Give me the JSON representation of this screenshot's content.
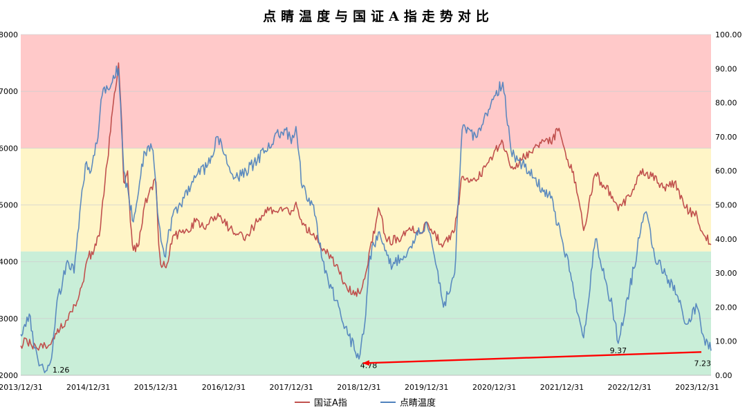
{
  "chart_data": {
    "type": "line",
    "title": "点睛温度与国证A指走势对比",
    "x_ticks": [
      "2013/12/31",
      "2014/12/31",
      "2015/12/31",
      "2016/12/31",
      "2017/12/31",
      "2018/12/31",
      "2019/12/31",
      "2020/12/31",
      "2021/12/31",
      "2022/12/31",
      "2023/12/31"
    ],
    "x_range": [
      "2013/12/31",
      "2024/03/15"
    ],
    "y_left": {
      "ticks": [
        "8000",
        "7000",
        "6000",
        "5000",
        "4000",
        "3000",
        "2000"
      ],
      "range": [
        2000,
        8000
      ]
    },
    "y_right": {
      "ticks": [
        "100.00",
        "90.00",
        "80.00",
        "70.00",
        "60.00",
        "50.00",
        "40.00",
        "30.00",
        "20.00",
        "10.00",
        "0.00"
      ],
      "range": [
        0,
        100
      ]
    },
    "bands": [
      {
        "axis": "left",
        "from": 6000,
        "to": 8000,
        "color": "#ffc9c9"
      },
      {
        "axis": "left",
        "from": 4180,
        "to": 6000,
        "color": "#fff5c7"
      },
      {
        "axis": "left",
        "from": 2000,
        "to": 4180,
        "color": "#c9eed8"
      }
    ],
    "legend_position": "bottom",
    "grid": true,
    "series": [
      {
        "name": "国证A指",
        "axis": "left",
        "color": "#c0504d",
        "points": [
          [
            "2013/12/31",
            2520
          ],
          [
            "2014/01/31",
            2640
          ],
          [
            "2014/02/28",
            2520
          ],
          [
            "2014/03/31",
            2470
          ],
          [
            "2014/04/30",
            2480
          ],
          [
            "2014/05/31",
            2530
          ],
          [
            "2014/06/30",
            2640
          ],
          [
            "2014/07/31",
            2810
          ],
          [
            "2014/08/31",
            2960
          ],
          [
            "2014/09/30",
            3120
          ],
          [
            "2014/10/31",
            3300
          ],
          [
            "2014/11/30",
            3620
          ],
          [
            "2014/12/31",
            4080
          ],
          [
            "2015/01/31",
            4200
          ],
          [
            "2015/02/28",
            4450
          ],
          [
            "2015/03/31",
            5400
          ],
          [
            "2015/04/30",
            6300
          ],
          [
            "2015/05/15",
            6800
          ],
          [
            "2015/06/12",
            7500
          ],
          [
            "2015/06/30",
            6400
          ],
          [
            "2015/07/10",
            5400
          ],
          [
            "2015/07/31",
            5600
          ],
          [
            "2015/08/15",
            4700
          ],
          [
            "2015/08/31",
            4200
          ],
          [
            "2015/09/30",
            4300
          ],
          [
            "2015/10/31",
            5000
          ],
          [
            "2015/11/30",
            5300
          ],
          [
            "2015/12/31",
            5400
          ],
          [
            "2016/01/15",
            4300
          ],
          [
            "2016/01/31",
            3900
          ],
          [
            "2016/02/29",
            3960
          ],
          [
            "2016/03/31",
            4450
          ],
          [
            "2016/05/31",
            4500
          ],
          [
            "2016/07/31",
            4700
          ],
          [
            "2016/09/30",
            4650
          ],
          [
            "2016/11/30",
            4850
          ],
          [
            "2016/12/31",
            4700
          ],
          [
            "2017/02/28",
            4500
          ],
          [
            "2017/04/30",
            4450
          ],
          [
            "2017/06/30",
            4700
          ],
          [
            "2017/08/31",
            4900
          ],
          [
            "2017/10/31",
            4950
          ],
          [
            "2017/12/31",
            4900
          ],
          [
            "2018/01/25",
            5050
          ],
          [
            "2018/02/28",
            4650
          ],
          [
            "2018/04/30",
            4500
          ],
          [
            "2018/06/30",
            4200
          ],
          [
            "2018/08/31",
            3950
          ],
          [
            "2018/10/31",
            3500
          ],
          [
            "2018/12/31",
            3450
          ],
          [
            "2019/01/31",
            3700
          ],
          [
            "2019/03/31",
            4650
          ],
          [
            "2019/04/15",
            4950
          ],
          [
            "2019/05/31",
            4350
          ],
          [
            "2019/07/31",
            4400
          ],
          [
            "2019/09/30",
            4600
          ],
          [
            "2019/11/30",
            4500
          ],
          [
            "2019/12/31",
            4700
          ],
          [
            "2020/01/31",
            4500
          ],
          [
            "2020/03/31",
            4300
          ],
          [
            "2020/05/31",
            4550
          ],
          [
            "2020/07/10",
            5500
          ],
          [
            "2020/09/30",
            5450
          ],
          [
            "2020/11/30",
            5750
          ],
          [
            "2020/12/31",
            5950
          ],
          [
            "2021/02/15",
            6100
          ],
          [
            "2021/03/31",
            5650
          ],
          [
            "2021/05/31",
            5800
          ],
          [
            "2021/07/31",
            6000
          ],
          [
            "2021/09/15",
            6150
          ],
          [
            "2021/10/31",
            6100
          ],
          [
            "2021/12/15",
            6350
          ],
          [
            "2021/12/31",
            6150
          ],
          [
            "2022/01/31",
            5800
          ],
          [
            "2022/03/15",
            5400
          ],
          [
            "2022/04/27",
            4550
          ],
          [
            "2022/06/30",
            5550
          ],
          [
            "2022/07/31",
            5400
          ],
          [
            "2022/09/30",
            5150
          ],
          [
            "2022/10/31",
            4900
          ],
          [
            "2022/12/31",
            5150
          ],
          [
            "2023/02/28",
            5600
          ],
          [
            "2023/04/30",
            5500
          ],
          [
            "2023/06/30",
            5300
          ],
          [
            "2023/08/31",
            5400
          ],
          [
            "2023/10/31",
            4950
          ],
          [
            "2023/12/31",
            4800
          ],
          [
            "2024/01/31",
            4500
          ],
          [
            "2024/03/15",
            4300
          ]
        ]
      },
      {
        "name": "点睛温度",
        "axis": "right",
        "color": "#4f81bd",
        "points": [
          [
            "2013/12/31",
            12
          ],
          [
            "2014/01/15",
            14
          ],
          [
            "2014/02/15",
            18
          ],
          [
            "2014/03/15",
            8
          ],
          [
            "2014/04/15",
            3
          ],
          [
            "2014/05/15",
            1.26
          ],
          [
            "2014/06/15",
            5
          ],
          [
            "2014/07/15",
            22
          ],
          [
            "2014/08/15",
            28
          ],
          [
            "2014/09/15",
            33
          ],
          [
            "2014/10/15",
            30
          ],
          [
            "2014/11/15",
            48
          ],
          [
            "2014/12/15",
            62
          ],
          [
            "2015/01/15",
            60
          ],
          [
            "2015/02/15",
            68
          ],
          [
            "2015/03/15",
            82
          ],
          [
            "2015/04/15",
            84
          ],
          [
            "2015/05/15",
            88
          ],
          [
            "2015/06/12",
            90
          ],
          [
            "2015/07/10",
            60
          ],
          [
            "2015/08/31",
            45
          ],
          [
            "2015/10/15",
            62
          ],
          [
            "2015/11/15",
            67
          ],
          [
            "2015/12/15",
            66
          ],
          [
            "2016/01/15",
            45
          ],
          [
            "2016/02/15",
            35
          ],
          [
            "2016/03/31",
            47
          ],
          [
            "2016/05/31",
            52
          ],
          [
            "2016/07/31",
            58
          ],
          [
            "2016/09/30",
            61
          ],
          [
            "2016/11/30",
            70
          ],
          [
            "2016/12/31",
            65
          ],
          [
            "2017/02/28",
            58
          ],
          [
            "2017/04/30",
            60
          ],
          [
            "2017/06/30",
            63
          ],
          [
            "2017/09/30",
            70
          ],
          [
            "2017/11/30",
            72
          ],
          [
            "2017/12/31",
            68
          ],
          [
            "2018/01/25",
            73
          ],
          [
            "2018/02/28",
            55
          ],
          [
            "2018/04/30",
            50
          ],
          [
            "2018/06/30",
            30
          ],
          [
            "2018/08/31",
            22
          ],
          [
            "2018/10/31",
            12
          ],
          [
            "2018/12/31",
            4.78
          ],
          [
            "2019/01/31",
            15
          ],
          [
            "2019/02/28",
            35
          ],
          [
            "2019/04/15",
            42
          ],
          [
            "2019/06/30",
            32
          ],
          [
            "2019/08/31",
            35
          ],
          [
            "2019/10/31",
            40
          ],
          [
            "2019/12/31",
            45
          ],
          [
            "2020/01/31",
            38
          ],
          [
            "2020/03/31",
            20
          ],
          [
            "2020/05/31",
            30
          ],
          [
            "2020/07/10",
            72
          ],
          [
            "2020/09/30",
            70
          ],
          [
            "2020/11/30",
            78
          ],
          [
            "2020/12/31",
            82
          ],
          [
            "2021/02/15",
            86
          ],
          [
            "2021/03/31",
            66
          ],
          [
            "2021/05/31",
            62
          ],
          [
            "2021/07/31",
            58
          ],
          [
            "2021/09/15",
            55
          ],
          [
            "2021/10/31",
            52
          ],
          [
            "2021/12/31",
            40
          ],
          [
            "2022/02/15",
            30
          ],
          [
            "2022/03/15",
            22
          ],
          [
            "2022/04/27",
            11
          ],
          [
            "2022/06/30",
            40
          ],
          [
            "2022/07/31",
            32
          ],
          [
            "2022/09/30",
            20
          ],
          [
            "2022/10/31",
            9.37
          ],
          [
            "2022/12/31",
            25
          ],
          [
            "2023/02/28",
            42
          ],
          [
            "2023/03/31",
            48
          ],
          [
            "2023/05/15",
            35
          ],
          [
            "2023/07/31",
            28
          ],
          [
            "2023/09/30",
            22
          ],
          [
            "2023/10/31",
            15
          ],
          [
            "2023/12/31",
            20
          ],
          [
            "2024/01/31",
            12
          ],
          [
            "2024/03/15",
            7.23
          ]
        ]
      }
    ],
    "annotations": [
      {
        "text": "1.26",
        "x": "2014/05/15",
        "y": 1.26,
        "axis": "right"
      },
      {
        "text": "4.78",
        "x": "2018/12/31",
        "y": 4.78,
        "axis": "right"
      },
      {
        "text": "9.37",
        "x": "2022/10/31",
        "y": 9.37,
        "axis": "right"
      },
      {
        "text": "7.23",
        "x": "2024/03/15",
        "y": 7.23,
        "axis": "right"
      }
    ],
    "arrow": {
      "from": {
        "x": "2024/03/15",
        "y": 7.23
      },
      "to": {
        "x": "2018/12/31",
        "y": 4.78
      },
      "axis": "right",
      "color": "#ff0000"
    }
  }
}
